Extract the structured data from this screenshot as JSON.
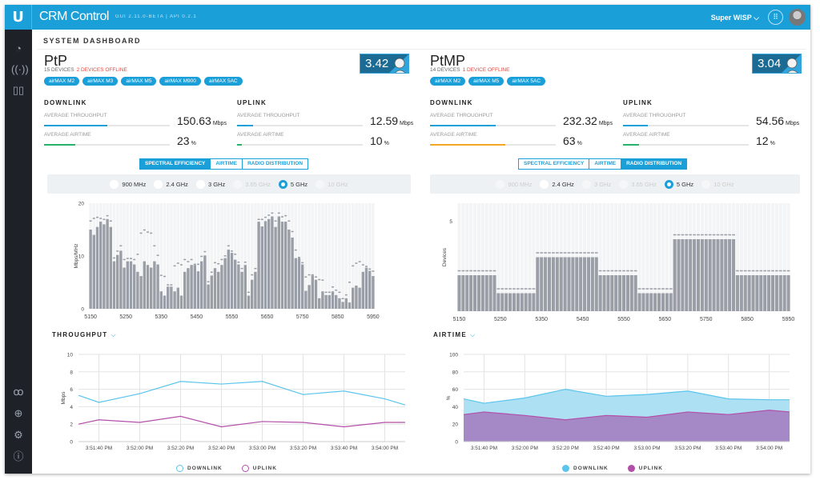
{
  "header": {
    "logo": "U",
    "app_name": "CRM Control",
    "version": "GUI 2.11.0-BETA  |  API 0.2.1",
    "org": "Super WISP",
    "org_icon": "chevron-down-icon",
    "apps_icon": "grid-icon",
    "avatar_icon": "user-avatar"
  },
  "sidebar": {
    "top": [
      "dashboard-icon",
      "antenna-icon",
      "map-icon"
    ],
    "bottom": [
      "users-icon",
      "crosshair-icon",
      "settings-icon",
      "info-icon"
    ]
  },
  "page_title": "SYSTEM DASHBOARD",
  "colors": {
    "brand": "#1a9fd9",
    "downlink": "#5bc4ec",
    "uplink": "#b34fa8",
    "throughput_bar": "#1a9fd9",
    "airtime_ok": "#27b26a",
    "airtime_warn": "#f5a623",
    "offline": "#e8453c",
    "bar": "#9a9ea6"
  },
  "panels": [
    {
      "name": "PtP",
      "devices": "15 DEVICES",
      "offline": "2 DEVICES OFFLINE",
      "tags": [
        "airMAX M2",
        "airMAX M3",
        "airMAX M5",
        "airMAX M900",
        "airMAX 5AC"
      ],
      "score": "3.42",
      "downlink": {
        "title": "DOWNLINK",
        "throughput_label": "AVERAGE THROUGHPUT",
        "throughput": "150.63",
        "throughput_unit": "Mbps",
        "throughput_pct": 50,
        "airtime_label": "AVERAGE AIRTIME",
        "airtime": "23",
        "airtime_unit": "%",
        "airtime_pct": 25,
        "airtime_color": "#27b26a"
      },
      "uplink": {
        "title": "UPLINK",
        "throughput_label": "AVERAGE THROUGHPUT",
        "throughput": "12.59",
        "throughput_unit": "Mbps",
        "throughput_pct": 13,
        "airtime_label": "AVERAGE AIRTIME",
        "airtime": "10",
        "airtime_unit": "%",
        "airtime_pct": 4,
        "airtime_color": "#27b26a"
      },
      "tabs": [
        {
          "label": "SPECTRAL EFFICIENCY",
          "active": true
        },
        {
          "label": "AIRTIME",
          "active": false
        },
        {
          "label": "RADIO DISTRIBUTION",
          "active": false
        }
      ],
      "bands": [
        {
          "label": "900 MHz",
          "enabled": true,
          "selected": false
        },
        {
          "label": "2.4 GHz",
          "enabled": true,
          "selected": false
        },
        {
          "label": "3 GHz",
          "enabled": true,
          "selected": false
        },
        {
          "label": "3.65 GHz",
          "enabled": false,
          "selected": false
        },
        {
          "label": "5 GHz",
          "enabled": true,
          "selected": true
        },
        {
          "label": "10 GHz",
          "enabled": false,
          "selected": false
        }
      ],
      "line_title": "THROUGHPUT",
      "legend": [
        "DOWNLINK",
        "UPLINK"
      ],
      "legend_style": "outline"
    },
    {
      "name": "PtMP",
      "devices": "14 DEVICES",
      "offline": "1 DEVICE OFFLINE",
      "tags": [
        "airMAX M2",
        "airMAX M5",
        "airMAX 5AC"
      ],
      "score": "3.04",
      "downlink": {
        "title": "DOWNLINK",
        "throughput_label": "AVERAGE THROUGHPUT",
        "throughput": "232.32",
        "throughput_unit": "Mbps",
        "throughput_pct": 52,
        "airtime_label": "AVERAGE AIRTIME",
        "airtime": "63",
        "airtime_unit": "%",
        "airtime_pct": 60,
        "airtime_color": "#f5a623"
      },
      "uplink": {
        "title": "UPLINK",
        "throughput_label": "AVERAGE THROUGHPUT",
        "throughput": "54.56",
        "throughput_unit": "Mbps",
        "throughput_pct": 20,
        "airtime_label": "AVERAGE AIRTIME",
        "airtime": "12",
        "airtime_unit": "%",
        "airtime_pct": 13,
        "airtime_color": "#27b26a"
      },
      "tabs": [
        {
          "label": "SPECTRAL EFFICIENCY",
          "active": false
        },
        {
          "label": "AIRTIME",
          "active": false
        },
        {
          "label": "RADIO DISTRIBUTION",
          "active": true
        }
      ],
      "bands": [
        {
          "label": "900 MHz",
          "enabled": false,
          "selected": false
        },
        {
          "label": "2.4 GHz",
          "enabled": true,
          "selected": false
        },
        {
          "label": "3 GHz",
          "enabled": false,
          "selected": false
        },
        {
          "label": "3.65 GHz",
          "enabled": false,
          "selected": false
        },
        {
          "label": "5 GHz",
          "enabled": true,
          "selected": true
        },
        {
          "label": "10 GHz",
          "enabled": false,
          "selected": false
        }
      ],
      "line_title": "AIRTIME",
      "legend": [
        "DOWNLINK",
        "UPLINK"
      ],
      "legend_style": "filled"
    }
  ],
  "chart_data": [
    {
      "type": "bar",
      "panel": "PtP",
      "ylabel": "Mbps/MHz",
      "ylim": [
        0,
        20
      ],
      "yticks": [
        0,
        10,
        20
      ],
      "xticks": [
        "5150",
        "5250",
        "5350",
        "5450",
        "5550",
        "5650",
        "5750",
        "5850",
        "5950"
      ],
      "values": [
        15,
        14,
        15.5,
        16.5,
        16,
        17,
        15.5,
        9,
        10.2,
        11,
        7.8,
        9,
        9,
        8.4,
        7,
        6.2,
        9,
        8.3,
        7.8,
        9,
        8.4,
        3.3,
        2.5,
        4.2,
        4.2,
        3.3,
        4,
        2.5,
        7,
        7.7,
        8.3,
        8.3,
        7.1,
        9,
        10.1,
        4.6,
        6.3,
        7.7,
        7,
        8.3,
        9.6,
        11.2,
        10.6,
        9.3,
        8.4,
        7,
        8.3,
        2.5,
        5.5,
        7,
        16.5,
        15.6,
        16.6,
        17,
        17.5,
        15.5,
        17.5,
        16.5,
        16.5,
        15,
        13.5,
        9.6,
        9.6,
        8.4,
        3.4,
        4.5,
        6.3,
        5.5,
        2,
        3.3,
        2.6,
        2.6,
        3.3,
        2.6,
        2,
        1.3,
        2,
        1.2,
        4,
        4.4,
        4,
        7,
        7.8,
        7.2,
        6.2
      ],
      "peaks": [
        16.5,
        17,
        17.2,
        17,
        16.8,
        17.5,
        16.5,
        9.5,
        10.8,
        11.8,
        9.2,
        9.4,
        9.4,
        9.2,
        10.2,
        14.2,
        14.8,
        14.4,
        14.2,
        11.8,
        10,
        6.2,
        6,
        4.4,
        4.4,
        8,
        8.5,
        8.2,
        9.2,
        8.8,
        9.2,
        8.3,
        8.3,
        9.8,
        10.7,
        5,
        6.8,
        8.6,
        8.4,
        9.2,
        9.9,
        11.8,
        10.8,
        10.2,
        8.7,
        7.5,
        8.7,
        3,
        6.3,
        7.5,
        16.8,
        16.8,
        17.2,
        17.6,
        18,
        16.5,
        18,
        17.3,
        17.5,
        16.5,
        14.5,
        11,
        9.6,
        8.6,
        5.9,
        6.3,
        6.3,
        5.9,
        5.4,
        5.3,
        3,
        3,
        4,
        3.4,
        3,
        1.8,
        2.5,
        4.9,
        8,
        8.5,
        8.8,
        8.2,
        7.9,
        7.4,
        7
      ]
    },
    {
      "type": "bar",
      "panel": "PtMP",
      "ylabel": "Devices",
      "ylim": [
        0,
        6
      ],
      "yticks": [
        5
      ],
      "xticks": [
        "5150",
        "5250",
        "5350",
        "5450",
        "5550",
        "5650",
        "5750",
        "5850",
        "5950"
      ],
      "segments": [
        {
          "bars": 10,
          "value": 2
        },
        {
          "bars": 10,
          "value": 1
        },
        {
          "bars": 16,
          "value": 3
        },
        {
          "bars": 10,
          "value": 2
        },
        {
          "bars": 9,
          "value": 1
        },
        {
          "bars": 16,
          "value": 4
        },
        {
          "bars": 14,
          "value": 2
        }
      ]
    },
    {
      "type": "line",
      "panel": "PtP",
      "ylabel": "Mbps",
      "ylim": [
        0,
        10
      ],
      "yticks": [
        0,
        2,
        4,
        6,
        8,
        10
      ],
      "x": [
        "3:51:30 PM",
        "3:51:40 PM",
        "3:52:00 PM",
        "3:52:20 PM",
        "3:52:40 PM",
        "3:53:00 PM",
        "3:53:20 PM",
        "3:53:40 PM",
        "3:54:00 PM",
        "3:54:10 PM"
      ],
      "xticks": [
        "3:51:40 PM",
        "3:52:00 PM",
        "3:52:20 PM",
        "3:52:40 PM",
        "3:53:00 PM",
        "3:53:20 PM",
        "3:53:40 PM",
        "3:54:00 PM"
      ],
      "series": [
        {
          "name": "DOWNLINK",
          "values": [
            5.3,
            4.5,
            5.5,
            6.9,
            6.6,
            6.9,
            5.4,
            5.8,
            4.9,
            4.2
          ]
        },
        {
          "name": "UPLINK",
          "values": [
            2.0,
            2.5,
            2.2,
            2.9,
            1.7,
            2.3,
            2.2,
            1.7,
            2.2,
            2.2
          ]
        }
      ]
    },
    {
      "type": "area",
      "panel": "PtMP",
      "ylabel": "%",
      "ylim": [
        0,
        100
      ],
      "yticks": [
        0,
        20,
        40,
        60,
        80,
        100
      ],
      "x": [
        "3:51:30 PM",
        "3:51:40 PM",
        "3:52:00 PM",
        "3:52:20 PM",
        "3:52:40 PM",
        "3:53:00 PM",
        "3:53:20 PM",
        "3:53:40 PM",
        "3:54:00 PM",
        "3:54:10 PM"
      ],
      "xticks": [
        "3:51:40 PM",
        "3:52:00 PM",
        "3:52:20 PM",
        "3:52:40 PM",
        "3:53:00 PM",
        "3:53:20 PM",
        "3:53:40 PM",
        "3:54:00 PM"
      ],
      "series": [
        {
          "name": "DOWNLINK",
          "values": [
            49,
            44,
            50,
            60,
            52,
            54,
            58,
            49,
            48,
            48
          ]
        },
        {
          "name": "UPLINK",
          "values": [
            31,
            34,
            30,
            25,
            30,
            28,
            34,
            31,
            36,
            34
          ]
        }
      ]
    }
  ]
}
